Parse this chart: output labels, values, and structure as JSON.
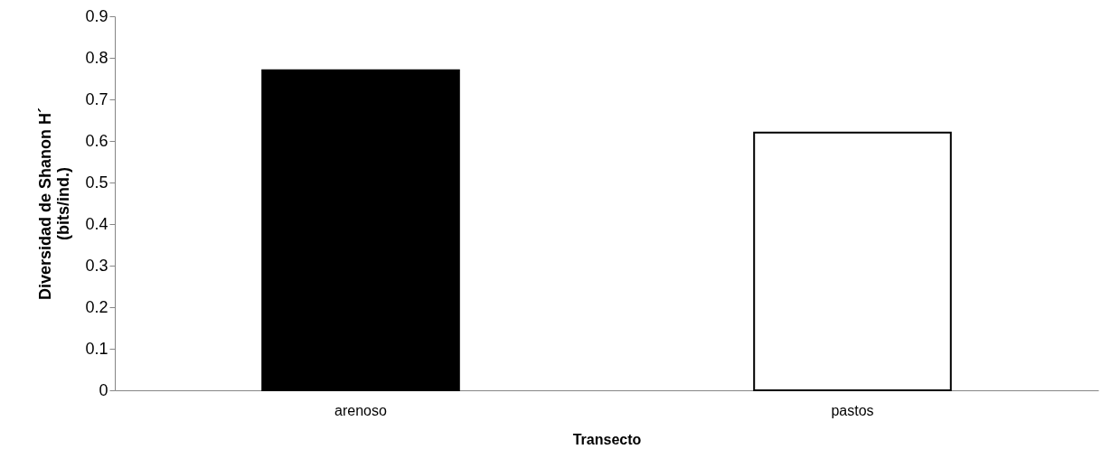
{
  "chart_data": {
    "type": "bar",
    "xlabel": "Transecto",
    "ylabel": "Diversidad de Shanon H´\n(bits/ind.)",
    "categories": [
      "arenoso",
      "pastos"
    ],
    "values": [
      0.77,
      0.62
    ],
    "colors": [
      "#000000",
      "#ffffff"
    ],
    "ylim": [
      0,
      0.9
    ],
    "yticks": [
      0,
      0.1,
      0.2,
      0.3,
      0.4,
      0.5,
      0.6,
      0.7,
      0.8,
      0.9
    ],
    "grid": false
  }
}
